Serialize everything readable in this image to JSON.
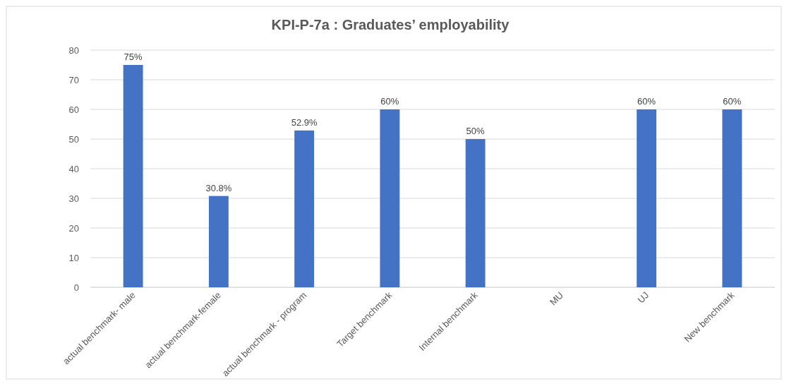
{
  "chart_data": {
    "type": "bar",
    "title": "KPI-P-7a : Graduates’ employability",
    "categories": [
      "actual benchmark- male",
      "actual benchmark-female",
      "actual benchmark - program",
      "Target benchmark",
      "Internal benchmark",
      "MU",
      "UJ",
      "New benchmark"
    ],
    "values": [
      75,
      30.8,
      52.9,
      60,
      50,
      null,
      60,
      60
    ],
    "value_labels": [
      "75%",
      "30.8%",
      "52.9%",
      "60%",
      "50%",
      null,
      "60%",
      "60%"
    ],
    "color": "#4472c4",
    "ylim": [
      0,
      80
    ],
    "yticks": [
      0,
      10,
      20,
      30,
      40,
      50,
      60,
      70,
      80
    ],
    "grid": "y"
  }
}
